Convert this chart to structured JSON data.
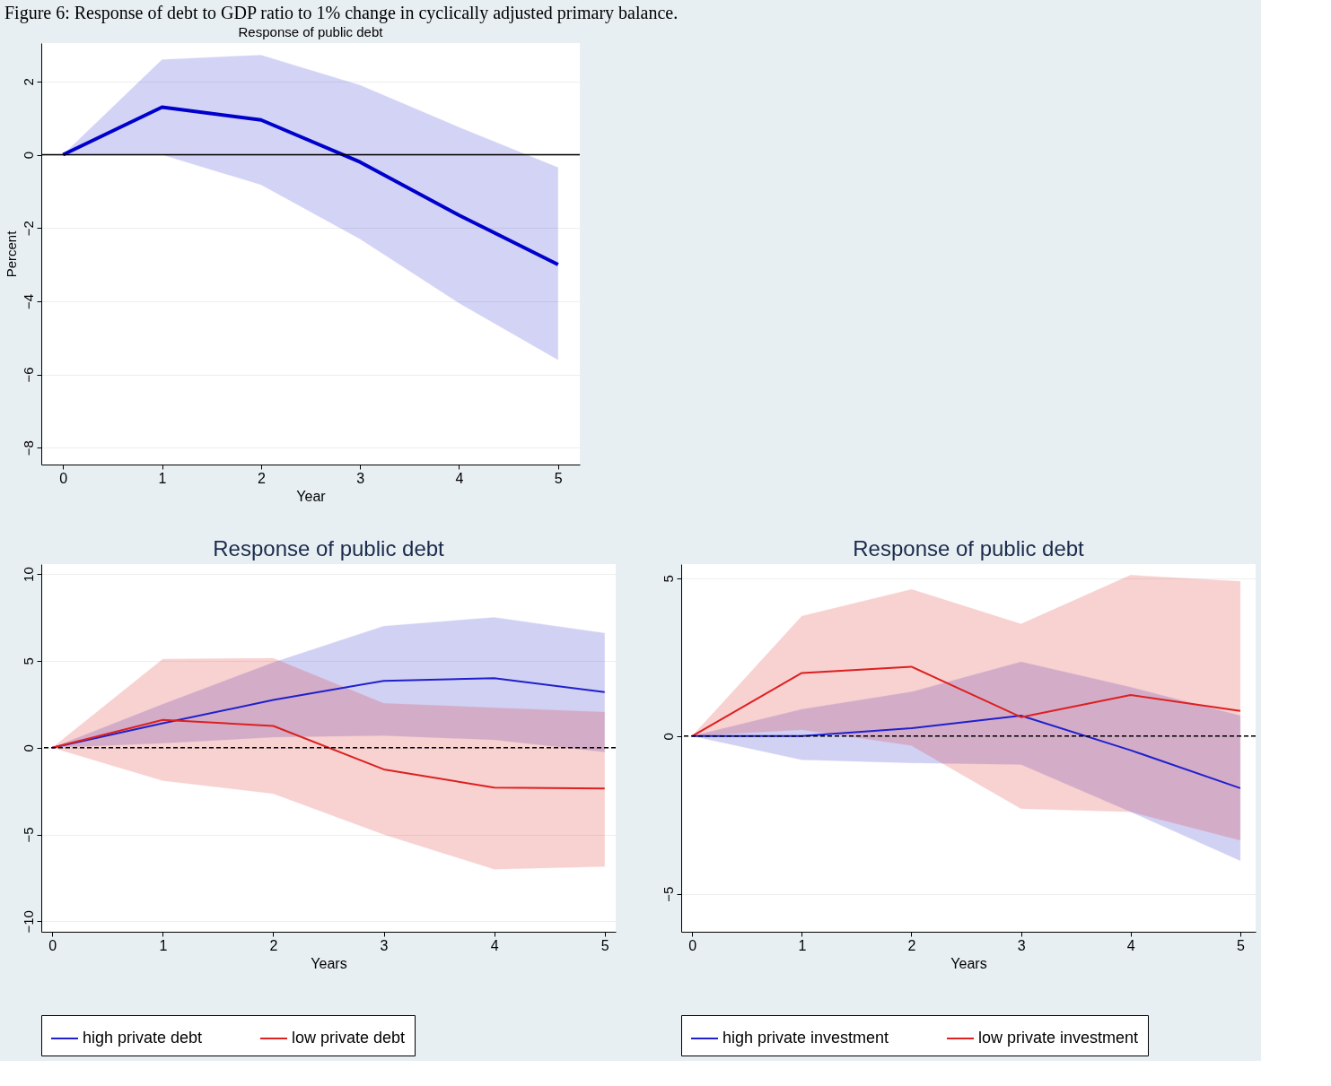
{
  "chart_data": [
    {
      "type": "line",
      "title": "Response of public debt",
      "xlabel": "Year",
      "ylabel": "Percent",
      "annotations": [
        "Figure 6: Response of debt to GDP ratio to 1% change in cyclically adjusted primary balance."
      ],
      "x": [
        0,
        1,
        2,
        3,
        4,
        5
      ],
      "xlim": [
        -0.22,
        5.22
      ],
      "xticks": [
        0,
        1,
        2,
        3,
        4,
        5
      ],
      "ylim": [
        -8.46,
        3.05
      ],
      "yticks": [
        -8,
        -6,
        -4,
        -2,
        0,
        2
      ],
      "grid": "y",
      "legend": false,
      "ref_lines": [
        {
          "axis": "y",
          "value": 0,
          "color": "#000000",
          "line_style": "solid"
        }
      ],
      "series": [
        {
          "color": "#0000cc",
          "values": [
            0,
            1.3,
            0.95,
            -0.2,
            -1.65,
            -3.0
          ],
          "lower": [
            0,
            0,
            -0.82,
            -2.3,
            -4.05,
            -5.6
          ],
          "upper": [
            0,
            2.6,
            2.72,
            1.9,
            0.75,
            -0.35
          ]
        }
      ]
    },
    {
      "type": "line",
      "title": "Response of public debt",
      "xlabel": "Years",
      "x": [
        0,
        1,
        2,
        3,
        4,
        5
      ],
      "xlim": [
        -0.1,
        5.1
      ],
      "xticks": [
        0,
        1,
        2,
        3,
        4,
        5
      ],
      "ylim": [
        -10.6,
        10.57
      ],
      "yticks": [
        -10,
        -5,
        0,
        5,
        10
      ],
      "grid": "y",
      "legend": "bottom",
      "ref_lines": [
        {
          "axis": "y",
          "value": 0,
          "color": "#000000",
          "line_style": "dashed"
        }
      ],
      "series": [
        {
          "name": "high private debt",
          "color": "#2020cc",
          "values": [
            0,
            1.4,
            2.75,
            3.85,
            4.0,
            3.2
          ],
          "lower": [
            0,
            0.25,
            0.6,
            0.7,
            0.45,
            -0.25
          ],
          "upper": [
            0,
            2.5,
            4.9,
            7.0,
            7.5,
            6.6
          ]
        },
        {
          "name": "low private debt",
          "color": "#dd2020",
          "values": [
            0,
            1.6,
            1.25,
            -1.25,
            -2.3,
            -2.35
          ],
          "lower": [
            0,
            -1.9,
            -2.65,
            -5.0,
            -7.0,
            -6.85
          ],
          "upper": [
            0,
            5.1,
            5.15,
            2.55,
            2.3,
            2.05
          ]
        }
      ]
    },
    {
      "type": "line",
      "title": "Response of public debt",
      "xlabel": "Years",
      "x": [
        0,
        1,
        2,
        3,
        4,
        5
      ],
      "xlim": [
        -0.1,
        5.14
      ],
      "xticks": [
        0,
        1,
        2,
        3,
        4,
        5
      ],
      "ylim": [
        -6.2,
        5.45
      ],
      "yticks": [
        -5,
        0,
        5
      ],
      "grid": "y",
      "legend": "bottom",
      "ref_lines": [
        {
          "axis": "y",
          "value": 0,
          "color": "#000000",
          "line_style": "dashed"
        }
      ],
      "series": [
        {
          "name": "high private investment",
          "color": "#2020cc",
          "values": [
            0,
            0.0,
            0.25,
            0.65,
            -0.45,
            -1.65
          ],
          "lower": [
            0,
            -0.75,
            -0.85,
            -0.9,
            -2.4,
            -3.95
          ],
          "upper": [
            0,
            0.85,
            1.4,
            2.35,
            1.55,
            0.65
          ]
        },
        {
          "name": "low private investment",
          "color": "#dd2020",
          "values": [
            0,
            2.0,
            2.2,
            0.6,
            1.3,
            0.8
          ],
          "lower": [
            0,
            0.2,
            -0.3,
            -2.3,
            -2.4,
            -3.3
          ],
          "upper": [
            0,
            3.8,
            4.65,
            3.55,
            5.1,
            4.9
          ]
        }
      ]
    }
  ]
}
